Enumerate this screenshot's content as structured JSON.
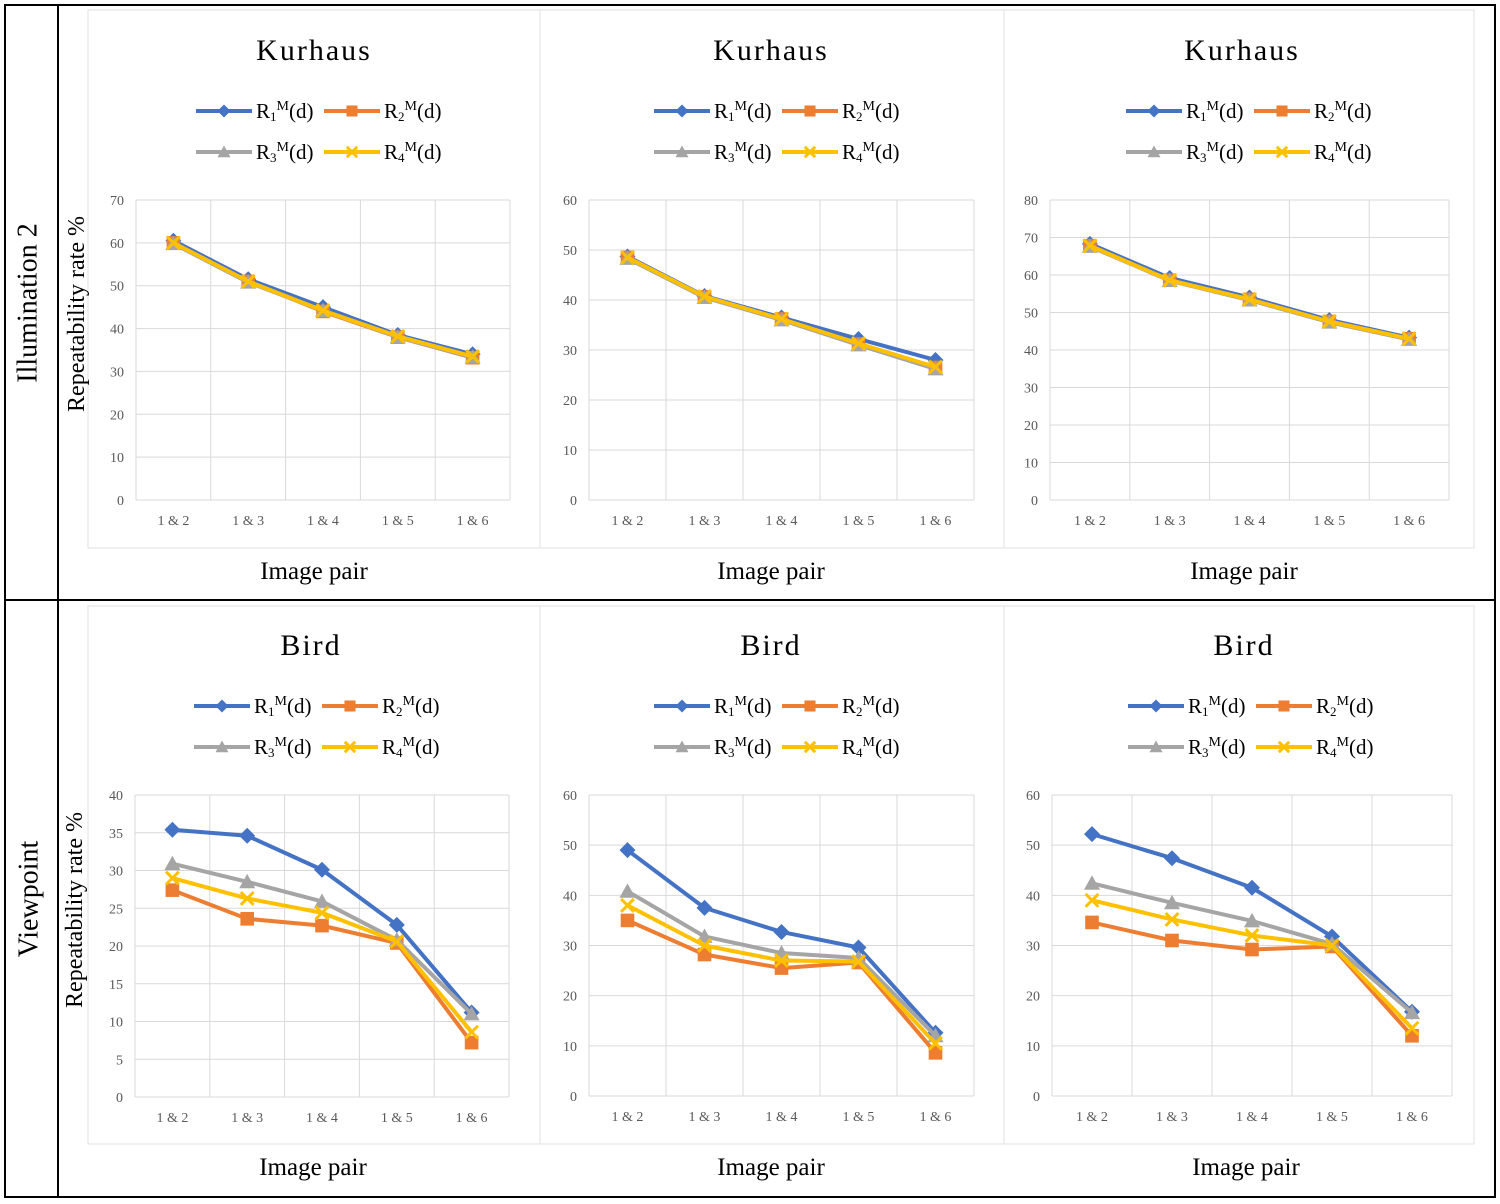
{
  "row_labels": [
    "Illumination 2",
    "Viewpoint"
  ],
  "colors": {
    "r1": "#4472C4",
    "r2": "#ED7D31",
    "r3": "#A5A5A5",
    "r4": "#FFC000",
    "grid": "#D9D9D9",
    "tick_text": "#595959",
    "frame": "#000000"
  },
  "chart_data": [
    {
      "type": "line",
      "title": "Kurhaus",
      "xlabel": "Image pair",
      "ylabel": "Repeatability rate %",
      "categories": [
        "1 & 2",
        "1 & 3",
        "1 & 4",
        "1 & 5",
        "1 & 6"
      ],
      "ylim": [
        0,
        70
      ],
      "yticks": [
        0,
        10,
        20,
        30,
        40,
        50,
        60,
        70
      ],
      "series": [
        {
          "name": "R1M(d)",
          "values": [
            60.5,
            51.5,
            45,
            38.5,
            34
          ]
        },
        {
          "name": "R2M(d)",
          "values": [
            60,
            51,
            44,
            38,
            33.2
          ]
        },
        {
          "name": "R3M(d)",
          "values": [
            59.8,
            50.8,
            44.2,
            38,
            33.3
          ]
        },
        {
          "name": "R4M(d)",
          "values": [
            60,
            51,
            44.2,
            38.2,
            33.5
          ]
        }
      ]
    },
    {
      "type": "line",
      "title": "Kurhaus",
      "xlabel": "Image pair",
      "ylabel": "",
      "categories": [
        "1 & 2",
        "1 & 3",
        "1 & 4",
        "1 & 5",
        "1 & 6"
      ],
      "ylim": [
        0,
        60
      ],
      "yticks": [
        0,
        10,
        20,
        30,
        40,
        50,
        60
      ],
      "series": [
        {
          "name": "R1M(d)",
          "values": [
            48.7,
            40.8,
            36.5,
            32.2,
            28
          ]
        },
        {
          "name": "R2M(d)",
          "values": [
            48.5,
            40.6,
            36.2,
            31.2,
            26.5
          ]
        },
        {
          "name": "R3M(d)",
          "values": [
            48.3,
            40.5,
            36,
            31,
            26.2
          ]
        },
        {
          "name": "R4M(d)",
          "values": [
            48.5,
            40.7,
            36.2,
            31.3,
            26.6
          ]
        }
      ]
    },
    {
      "type": "line",
      "title": "Kurhaus",
      "xlabel": "Image pair",
      "ylabel": "",
      "categories": [
        "1 & 2",
        "1 & 3",
        "1 & 4",
        "1 & 5",
        "1 & 6"
      ],
      "ylim": [
        0,
        80
      ],
      "yticks": [
        0,
        10,
        20,
        30,
        40,
        50,
        60,
        70,
        80
      ],
      "series": [
        {
          "name": "R1M(d)",
          "values": [
            68.3,
            59.2,
            54,
            48,
            43.3
          ]
        },
        {
          "name": "R2M(d)",
          "values": [
            67.8,
            58.6,
            53.5,
            47.6,
            43
          ]
        },
        {
          "name": "R3M(d)",
          "values": [
            67.6,
            58.5,
            53.3,
            47.4,
            42.8
          ]
        },
        {
          "name": "R4M(d)",
          "values": [
            67.8,
            58.6,
            53.5,
            47.6,
            43
          ]
        }
      ]
    },
    {
      "type": "line",
      "title": "Bird",
      "xlabel": "Image pair",
      "ylabel": "Repeatability rate %",
      "categories": [
        "1 & 2",
        "1 & 3",
        "1 & 4",
        "1 & 5",
        "1 & 6"
      ],
      "ylim": [
        0,
        40
      ],
      "yticks": [
        0,
        5,
        10,
        15,
        20,
        25,
        30,
        35,
        40
      ],
      "series": [
        {
          "name": "R1M(d)",
          "values": [
            35.4,
            34.6,
            30.1,
            22.8,
            11.2
          ]
        },
        {
          "name": "R2M(d)",
          "values": [
            27.4,
            23.6,
            22.7,
            20.4,
            7.2
          ]
        },
        {
          "name": "R3M(d)",
          "values": [
            30.9,
            28.5,
            25.9,
            20.8,
            11
          ]
        },
        {
          "name": "R4M(d)",
          "values": [
            29,
            26.3,
            24.4,
            20.6,
            8.6
          ]
        }
      ]
    },
    {
      "type": "line",
      "title": "Bird",
      "xlabel": "Image pair",
      "ylabel": "",
      "categories": [
        "1 & 2",
        "1 & 3",
        "1 & 4",
        "1 & 5",
        "1 & 6"
      ],
      "ylim": [
        0,
        60
      ],
      "yticks": [
        0,
        10,
        20,
        30,
        40,
        50,
        60
      ],
      "series": [
        {
          "name": "R1M(d)",
          "values": [
            49,
            37.5,
            32.7,
            29.6,
            12.6
          ]
        },
        {
          "name": "R2M(d)",
          "values": [
            35,
            28.2,
            25.5,
            26.6,
            8.6
          ]
        },
        {
          "name": "R3M(d)",
          "values": [
            40.8,
            31.8,
            28.5,
            27.5,
            12
          ]
        },
        {
          "name": "R4M(d)",
          "values": [
            38,
            30,
            27,
            26.8,
            10.5
          ]
        }
      ]
    },
    {
      "type": "line",
      "title": "Bird",
      "xlabel": "Image pair",
      "ylabel": "",
      "categories": [
        "1 & 2",
        "1 & 3",
        "1 & 4",
        "1 & 5",
        "1 & 6"
      ],
      "ylim": [
        0,
        60
      ],
      "yticks": [
        0,
        10,
        20,
        30,
        40,
        50,
        60
      ],
      "series": [
        {
          "name": "R1M(d)",
          "values": [
            52.2,
            47.4,
            41.5,
            31.8,
            16.8
          ]
        },
        {
          "name": "R2M(d)",
          "values": [
            34.6,
            31,
            29.2,
            29.8,
            12
          ]
        },
        {
          "name": "R3M(d)",
          "values": [
            42.4,
            38.5,
            34.9,
            30.3,
            16.6
          ]
        },
        {
          "name": "R4M(d)",
          "values": [
            39,
            35.2,
            32,
            30,
            13.5
          ]
        }
      ]
    }
  ]
}
